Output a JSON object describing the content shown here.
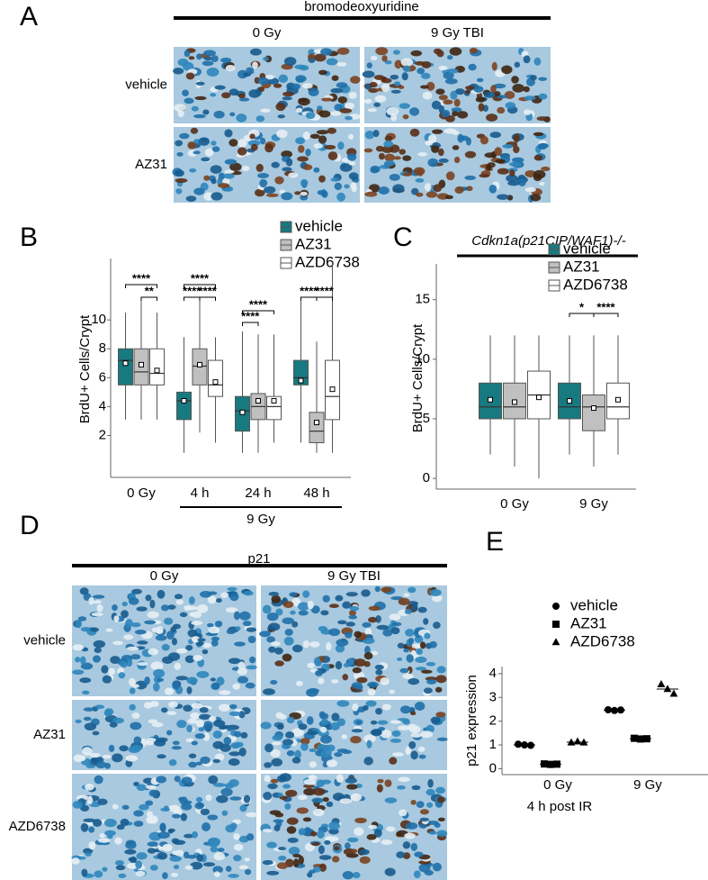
{
  "figure_panels": [
    {
      "label": "A",
      "title": "bromodeoxyuridine",
      "columns": [
        "0 Gy",
        "9 Gy TBI"
      ],
      "rows": [
        "vehicle",
        "AZ31"
      ]
    },
    {
      "label": "D",
      "title": "p21",
      "columns": [
        "0 Gy",
        "9 Gy TBI"
      ],
      "rows": [
        "vehicle",
        "AZ31",
        "AZD6738"
      ]
    }
  ],
  "chart_data": [
    {
      "type": "box",
      "panel_label": "B",
      "ylabel": "BrdU+ Cells/Crypt",
      "categories": [
        "0 Gy",
        "4 h",
        "24 h",
        "48 h"
      ],
      "group_label": "9 Gy",
      "ylim": [
        -0.9,
        14.25
      ],
      "yticks": [
        2,
        4,
        6,
        8,
        10
      ],
      "legend": "top-right",
      "series": [
        {
          "name": "vehicle",
          "color": "#177a80",
          "min": [
            3.1,
            0.8,
            0.8,
            1.5
          ],
          "q1": [
            5.5,
            3.1,
            2.3,
            5.5
          ],
          "median": [
            7.2,
            4.4,
            3.7,
            6.0
          ],
          "q3": [
            8.0,
            5.0,
            4.7,
            7.2
          ],
          "max": [
            10.5,
            8.8,
            9.2,
            11.5
          ],
          "mean": [
            7.0,
            4.4,
            3.6,
            5.8
          ]
        },
        {
          "name": "AZ31",
          "color": "#c0c0c0",
          "min": [
            3.1,
            2.2,
            0.8,
            0.8
          ],
          "q1": [
            5.5,
            5.5,
            3.1,
            1.5
          ],
          "median": [
            6.4,
            6.8,
            4.0,
            2.3
          ],
          "q3": [
            8.0,
            8.0,
            4.9,
            3.6
          ],
          "max": [
            11.5,
            11.5,
            9.0,
            8.5
          ],
          "mean": [
            6.9,
            6.9,
            4.4,
            2.9
          ]
        },
        {
          "name": "AZD6738",
          "color": "#ffffff",
          "min": [
            3.1,
            1.5,
            1.5,
            0.8
          ],
          "q1": [
            5.5,
            4.7,
            3.1,
            3.1
          ],
          "median": [
            6.3,
            5.5,
            4.0,
            4.7
          ],
          "q3": [
            8.0,
            7.2,
            4.7,
            7.2
          ],
          "max": [
            10.5,
            8.8,
            9.0,
            14.0
          ],
          "mean": [
            6.5,
            5.7,
            4.4,
            5.2
          ]
        }
      ],
      "annotations": [
        {
          "text": "****"
        },
        {
          "text": "**"
        },
        {
          "text": "****"
        },
        {
          "text": "****"
        },
        {
          "text": "****"
        },
        {
          "text": "****"
        },
        {
          "text": "****"
        },
        {
          "text": "****"
        },
        {
          "text": "****"
        }
      ]
    },
    {
      "type": "box",
      "panel_label": "C",
      "title": "Cdkn1a(p21CIP/WAF1)-/-",
      "ylabel": "BrdU+ Cells/Crypt",
      "categories": [
        "0 Gy",
        "9 Gy"
      ],
      "ylim": [
        -0.9,
        18.0
      ],
      "yticks": [
        0,
        5,
        10,
        15
      ],
      "legend": "top-right",
      "series": [
        {
          "name": "vehicle",
          "color": "#177a80",
          "min": [
            2,
            2
          ],
          "q1": [
            5,
            5
          ],
          "median": [
            6,
            6
          ],
          "q3": [
            8,
            8
          ],
          "max": [
            12,
            12
          ],
          "mean": [
            6.6,
            6.5
          ]
        },
        {
          "name": "AZ31",
          "color": "#c0c0c0",
          "min": [
            1,
            1
          ],
          "q1": [
            5,
            4
          ],
          "median": [
            6,
            6
          ],
          "q3": [
            8,
            7
          ],
          "max": [
            12,
            12
          ],
          "mean": [
            6.4,
            5.9
          ]
        },
        {
          "name": "AZD6738",
          "color": "#ffffff",
          "min": [
            0,
            2
          ],
          "q1": [
            5,
            5
          ],
          "median": [
            7,
            6
          ],
          "q3": [
            9,
            8
          ],
          "max": [
            12,
            12
          ],
          "mean": [
            6.8,
            6.6
          ]
        }
      ],
      "annotations": [
        {
          "text": "*"
        },
        {
          "text": "****"
        }
      ]
    },
    {
      "type": "dot",
      "panel_label": "E",
      "xlabel": "4 h post IR",
      "ylabel": "p21 expression",
      "categories": [
        "0 Gy",
        "9 Gy"
      ],
      "ylim": [
        -0.25,
        4.3
      ],
      "yticks": [
        0,
        1,
        2,
        3,
        4
      ],
      "legend": "top-right",
      "series": [
        {
          "name": "vehicle",
          "marker": "circle",
          "color": "#000000",
          "values": [
            [
              1.03,
              1.0,
              0.98
            ],
            [
              2.48,
              2.45,
              2.47
            ]
          ]
        },
        {
          "name": "AZ31",
          "marker": "square",
          "color": "#000000",
          "values": [
            [
              0.2,
              0.18,
              0.19
            ],
            [
              1.28,
              1.25,
              1.26
            ]
          ]
        },
        {
          "name": "AZD6738",
          "marker": "triangle",
          "color": "#000000",
          "values": [
            [
              1.1,
              1.14,
              1.1
            ],
            [
              3.55,
              3.35,
              3.15
            ]
          ]
        }
      ]
    }
  ]
}
